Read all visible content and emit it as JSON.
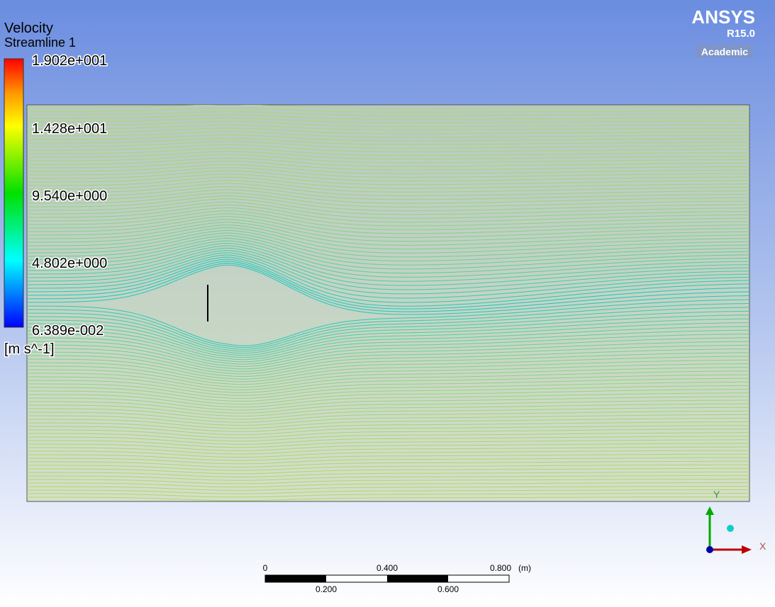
{
  "legend": {
    "variable": "Velocity",
    "object": "Streamline 1",
    "labels": [
      "1.902e+001",
      "1.428e+001",
      "9.540e+000",
      "4.802e+000",
      "6.389e-002"
    ],
    "unit": "[m s^-1]"
  },
  "logo": {
    "brand": "ANSYS",
    "release": "R15.0",
    "edition": "Academic"
  },
  "triad": {
    "x": "X",
    "y": "Y"
  },
  "scale_bar": {
    "top_labels": [
      "0",
      "0.400",
      "0.800"
    ],
    "unit": "(m)",
    "bottom_labels": [
      "0.200",
      "0.600"
    ]
  }
}
